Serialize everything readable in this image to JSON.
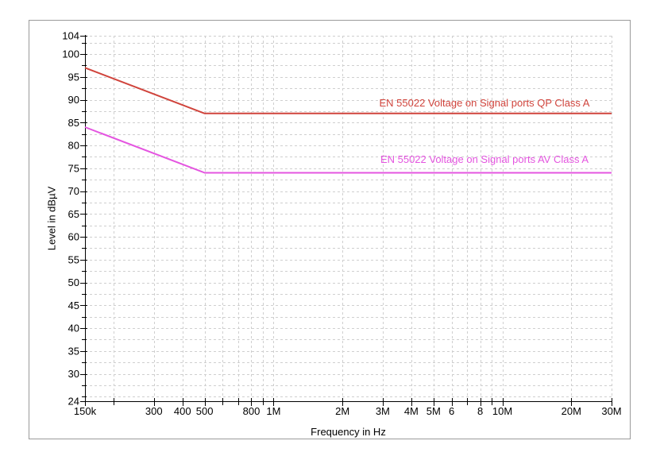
{
  "window": {
    "background": "#ffffff",
    "panel_border_color": "#9a9a9a"
  },
  "chart_data": {
    "type": "line",
    "title": "",
    "xlabel": "Frequency in Hz",
    "ylabel": "Level in dBµV",
    "x_scale": "log",
    "x_unit": "Hz",
    "y_unit": "dBµV",
    "x_range_hz": [
      150000,
      30000000
    ],
    "ylim": [
      24,
      104
    ],
    "grid": true,
    "grid_color": "#cfcfcf",
    "axis_color": "#000000",
    "text_color": "#000000",
    "legend_position": "inline-above-lines",
    "y_major_ticks": [
      104,
      100,
      95,
      90,
      85,
      80,
      75,
      70,
      65,
      60,
      55,
      50,
      45,
      40,
      35,
      30,
      24
    ],
    "y_minor_ticks": [
      102.5,
      97.5,
      92.5,
      87.5,
      82.5,
      77.5,
      72.5,
      67.5,
      62.5,
      57.5,
      52.5,
      47.5,
      42.5,
      37.5,
      32.5,
      27.5,
      25
    ],
    "y_gridlines": [
      104,
      102.5,
      100,
      97.5,
      95,
      92.5,
      90,
      87.5,
      85,
      82.5,
      80,
      77.5,
      75,
      72.5,
      70,
      67.5,
      65,
      62.5,
      60,
      57.5,
      55,
      52.5,
      50,
      47.5,
      45,
      42.5,
      40,
      37.5,
      35,
      32.5,
      30,
      27.5,
      25
    ],
    "x_ticks": [
      {
        "hz": 150000,
        "label": "150k"
      },
      {
        "hz": 200000,
        "label": ""
      },
      {
        "hz": 300000,
        "label": "300"
      },
      {
        "hz": 400000,
        "label": "400"
      },
      {
        "hz": 500000,
        "label": "500"
      },
      {
        "hz": 600000,
        "label": ""
      },
      {
        "hz": 700000,
        "label": ""
      },
      {
        "hz": 800000,
        "label": "800"
      },
      {
        "hz": 900000,
        "label": ""
      },
      {
        "hz": 1000000,
        "label": "1M"
      },
      {
        "hz": 2000000,
        "label": "2M"
      },
      {
        "hz": 3000000,
        "label": "3M"
      },
      {
        "hz": 4000000,
        "label": "4M"
      },
      {
        "hz": 5000000,
        "label": "5M"
      },
      {
        "hz": 6000000,
        "label": "6"
      },
      {
        "hz": 7000000,
        "label": ""
      },
      {
        "hz": 8000000,
        "label": "8"
      },
      {
        "hz": 9000000,
        "label": ""
      },
      {
        "hz": 10000000,
        "label": "10M"
      },
      {
        "hz": 20000000,
        "label": "20M"
      },
      {
        "hz": 30000000,
        "label": "30M"
      }
    ],
    "series": [
      {
        "id": "qp",
        "name": "EN 55022 Voltage on Signal ports QP Class A",
        "color": "#d0443c",
        "line_width": 2,
        "points_hz_dbuv": [
          [
            150000,
            97
          ],
          [
            500000,
            87
          ],
          [
            30000000,
            87
          ]
        ]
      },
      {
        "id": "av",
        "name": "EN 55022 Voltage on Signal ports AV Class A",
        "color": "#e455e0",
        "line_width": 2,
        "points_hz_dbuv": [
          [
            150000,
            84
          ],
          [
            500000,
            74
          ],
          [
            30000000,
            74
          ]
        ]
      }
    ]
  }
}
